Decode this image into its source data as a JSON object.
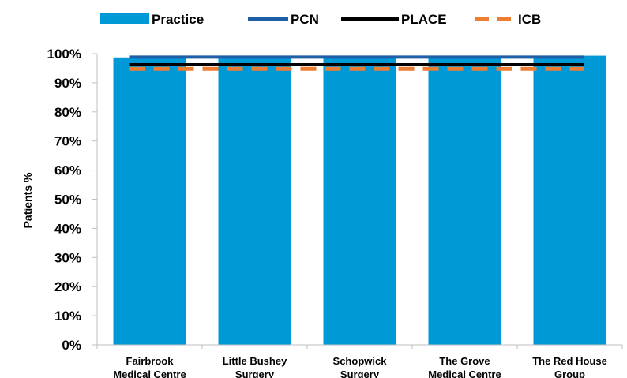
{
  "chart_data": {
    "type": "bar",
    "title": "",
    "xlabel": "",
    "ylabel": "Patients %",
    "ylim": [
      0,
      100
    ],
    "yticks": [
      "0%",
      "10%",
      "20%",
      "30%",
      "40%",
      "50%",
      "60%",
      "70%",
      "80%",
      "90%",
      "100%"
    ],
    "categories": [
      [
        "Fairbrook",
        "Medical Centre"
      ],
      [
        "Little Bushey",
        "Surgery"
      ],
      [
        "Schopwick",
        "Surgery"
      ],
      [
        "The Grove",
        "Medical Centre"
      ],
      [
        "The Red House",
        "Group"
      ]
    ],
    "series": [
      {
        "name": "Practice",
        "kind": "bar",
        "color": "#0099d8",
        "values": [
          98.7,
          98.7,
          98.7,
          98.7,
          99.3
        ]
      },
      {
        "name": "PCN",
        "kind": "line",
        "color": "#1f5fa8",
        "style": "solid",
        "values": [
          98.8,
          98.8,
          98.8,
          98.8,
          98.8
        ]
      },
      {
        "name": "PLACE",
        "kind": "line",
        "color": "#000000",
        "style": "solid",
        "values": [
          96.2,
          96.2,
          96.2,
          96.2,
          96.2
        ]
      },
      {
        "name": "ICB",
        "kind": "line",
        "color": "#ed7d31",
        "style": "dashed",
        "values": [
          94.8,
          94.8,
          94.8,
          94.8,
          94.8
        ]
      }
    ],
    "grid": false,
    "legend_position": "top"
  }
}
